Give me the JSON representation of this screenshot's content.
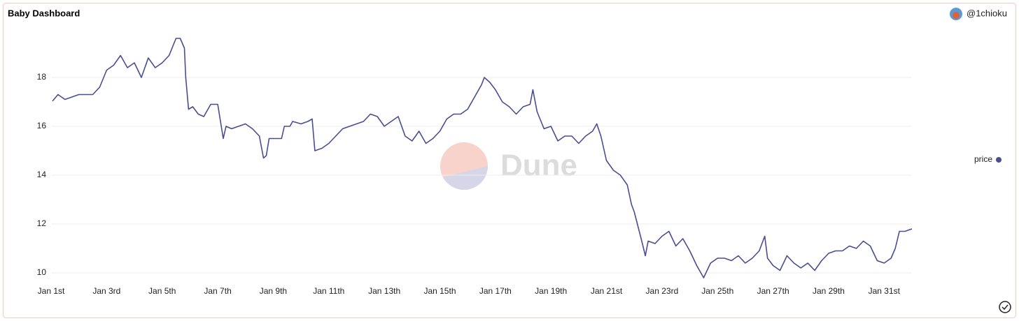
{
  "header": {
    "title": "Baby Dashboard",
    "user": "@1chioku"
  },
  "chart_data": {
    "type": "line",
    "watermark": "Dune",
    "x": [
      1.05,
      1.25,
      1.5,
      2,
      2.5,
      2.75,
      3,
      3.25,
      3.5,
      3.75,
      4,
      4.25,
      4.5,
      4.75,
      5,
      5.25,
      5.5,
      5.65,
      5.8,
      5.85,
      5.95,
      6.1,
      6.3,
      6.5,
      6.75,
      7,
      7.2,
      7.3,
      7.5,
      7.75,
      8,
      8.25,
      8.5,
      8.65,
      8.75,
      8.85,
      9.3,
      9.4,
      9.6,
      9.7,
      10,
      10.25,
      10.4,
      10.5,
      10.75,
      11,
      11.25,
      11.5,
      11.75,
      12,
      12.25,
      12.5,
      12.75,
      13,
      13.25,
      13.5,
      13.75,
      14,
      14.25,
      14.5,
      14.75,
      15,
      15.25,
      15.5,
      15.75,
      16,
      16.25,
      16.5,
      16.6,
      16.8,
      17,
      17.25,
      17.5,
      17.75,
      18,
      18.25,
      18.35,
      18.5,
      18.75,
      19,
      19.25,
      19.5,
      19.75,
      20,
      20.25,
      20.5,
      20.65,
      20.8,
      21,
      21.25,
      21.5,
      21.75,
      21.9,
      22,
      22.25,
      22.4,
      22.5,
      22.75,
      23,
      23.25,
      23.5,
      23.75,
      24,
      24.25,
      24.5,
      24.75,
      25,
      25.25,
      25.5,
      25.75,
      26,
      26.25,
      26.5,
      26.7,
      26.8,
      27,
      27.25,
      27.5,
      27.75,
      28,
      28.25,
      28.5,
      28.75,
      29,
      29.25,
      29.5,
      29.75,
      30,
      30.25,
      30.5,
      30.75,
      31,
      31.25,
      31.4,
      31.55,
      31.75,
      32
    ],
    "series": [
      {
        "name": "price",
        "color": "#4b4c92",
        "values": [
          17.03,
          17.3,
          17.1,
          17.3,
          17.3,
          17.6,
          18.3,
          18.5,
          18.9,
          18.4,
          18.6,
          18.0,
          18.8,
          18.4,
          18.6,
          18.9,
          19.6,
          19.6,
          19.2,
          18.0,
          16.7,
          16.8,
          16.5,
          16.4,
          16.9,
          16.9,
          15.5,
          16.0,
          15.9,
          16.0,
          16.1,
          15.9,
          15.6,
          14.7,
          14.8,
          15.5,
          15.5,
          16.0,
          16.0,
          16.2,
          16.1,
          16.2,
          16.3,
          15.0,
          15.1,
          15.3,
          15.6,
          15.9,
          16.0,
          16.1,
          16.2,
          16.5,
          16.4,
          16.0,
          16.2,
          16.4,
          15.6,
          15.4,
          15.8,
          15.3,
          15.5,
          15.8,
          16.3,
          16.5,
          16.5,
          16.7,
          17.2,
          17.7,
          18.0,
          17.8,
          17.5,
          17.0,
          16.8,
          16.5,
          16.8,
          16.9,
          17.5,
          16.6,
          15.9,
          16.0,
          15.4,
          15.6,
          15.6,
          15.3,
          15.6,
          15.8,
          16.1,
          15.6,
          14.6,
          14.2,
          14.0,
          13.6,
          12.8,
          12.5,
          11.4,
          10.7,
          11.3,
          11.2,
          11.5,
          11.7,
          11.1,
          11.4,
          10.9,
          10.3,
          9.8,
          10.4,
          10.6,
          10.6,
          10.5,
          10.7,
          10.4,
          10.6,
          10.9,
          11.5,
          10.6,
          10.3,
          10.1,
          10.7,
          10.4,
          10.2,
          10.4,
          10.1,
          10.5,
          10.8,
          10.9,
          10.9,
          11.1,
          11.0,
          11.3,
          11.1,
          10.5,
          10.4,
          10.6,
          11.0,
          11.7,
          11.7,
          11.8
        ]
      }
    ],
    "xlim": [
      1,
      32
    ],
    "xticks": [
      {
        "value": 1,
        "label": "Jan 1st"
      },
      {
        "value": 3,
        "label": "Jan 3rd"
      },
      {
        "value": 5,
        "label": "Jan 5th"
      },
      {
        "value": 7,
        "label": "Jan 7th"
      },
      {
        "value": 9,
        "label": "Jan 9th"
      },
      {
        "value": 11,
        "label": "Jan 11th"
      },
      {
        "value": 13,
        "label": "Jan 13th"
      },
      {
        "value": 15,
        "label": "Jan 15th"
      },
      {
        "value": 17,
        "label": "Jan 17th"
      },
      {
        "value": 19,
        "label": "Jan 19th"
      },
      {
        "value": 21,
        "label": "Jan 21st"
      },
      {
        "value": 23,
        "label": "Jan 23rd"
      },
      {
        "value": 25,
        "label": "Jan 25th"
      },
      {
        "value": 27,
        "label": "Jan 27th"
      },
      {
        "value": 29,
        "label": "Jan 29th"
      },
      {
        "value": 31,
        "label": "Jan 31st"
      }
    ],
    "ylim": [
      9.6,
      20
    ],
    "yticks": [
      10,
      12,
      14,
      16,
      18
    ],
    "grid": true,
    "legend": "right"
  }
}
